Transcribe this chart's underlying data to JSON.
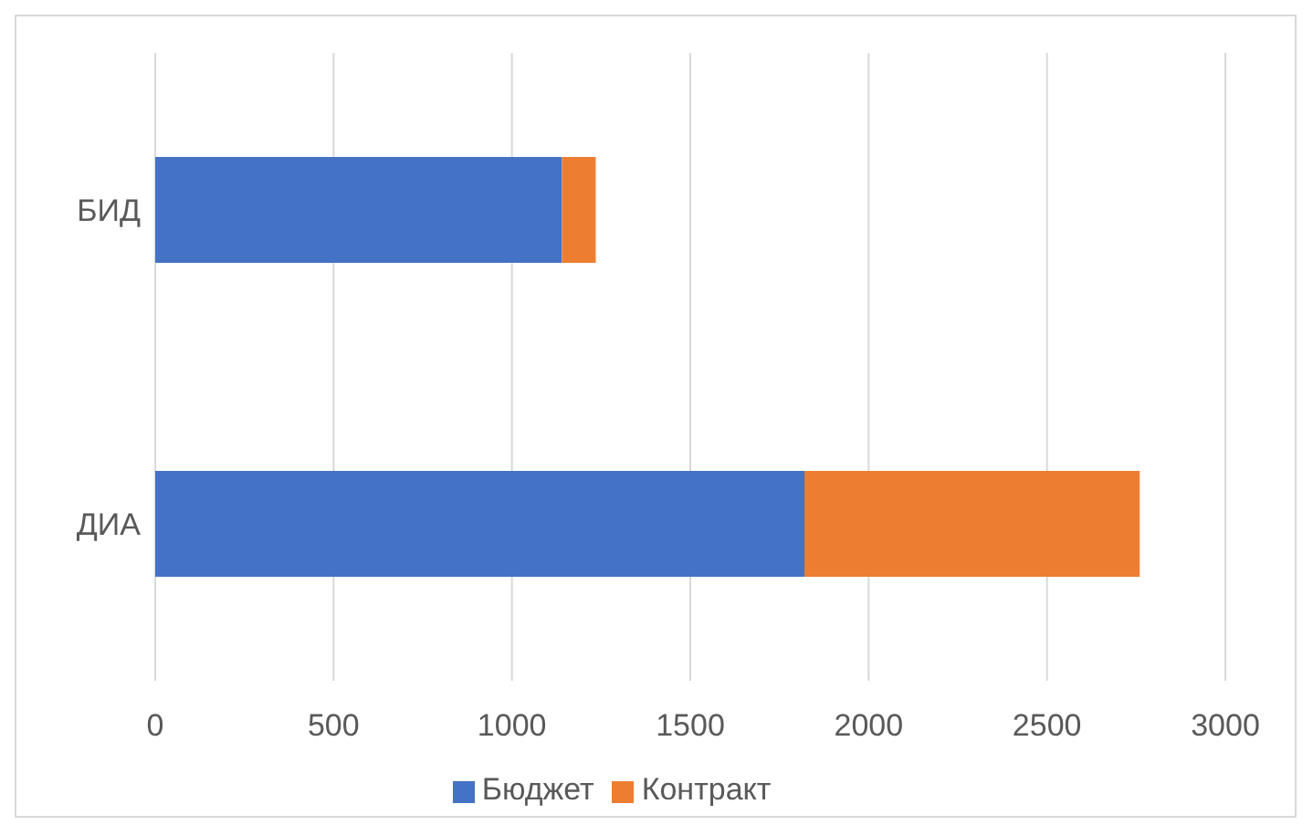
{
  "chart_data": {
    "type": "bar",
    "orientation": "horizontal",
    "stacked": true,
    "categories": [
      "БИД",
      "ДИА"
    ],
    "series": [
      {
        "name": "Бюджет",
        "color": "#4472c4",
        "values": [
          1140,
          1820
        ]
      },
      {
        "name": "Контракт",
        "color": "#ed7d31",
        "values": [
          95,
          940
        ]
      }
    ],
    "xlim": [
      0,
      3000
    ],
    "xticks": [
      0,
      500,
      1000,
      1500,
      2000,
      2500,
      3000
    ],
    "grid": "x",
    "legend": "bottom"
  }
}
